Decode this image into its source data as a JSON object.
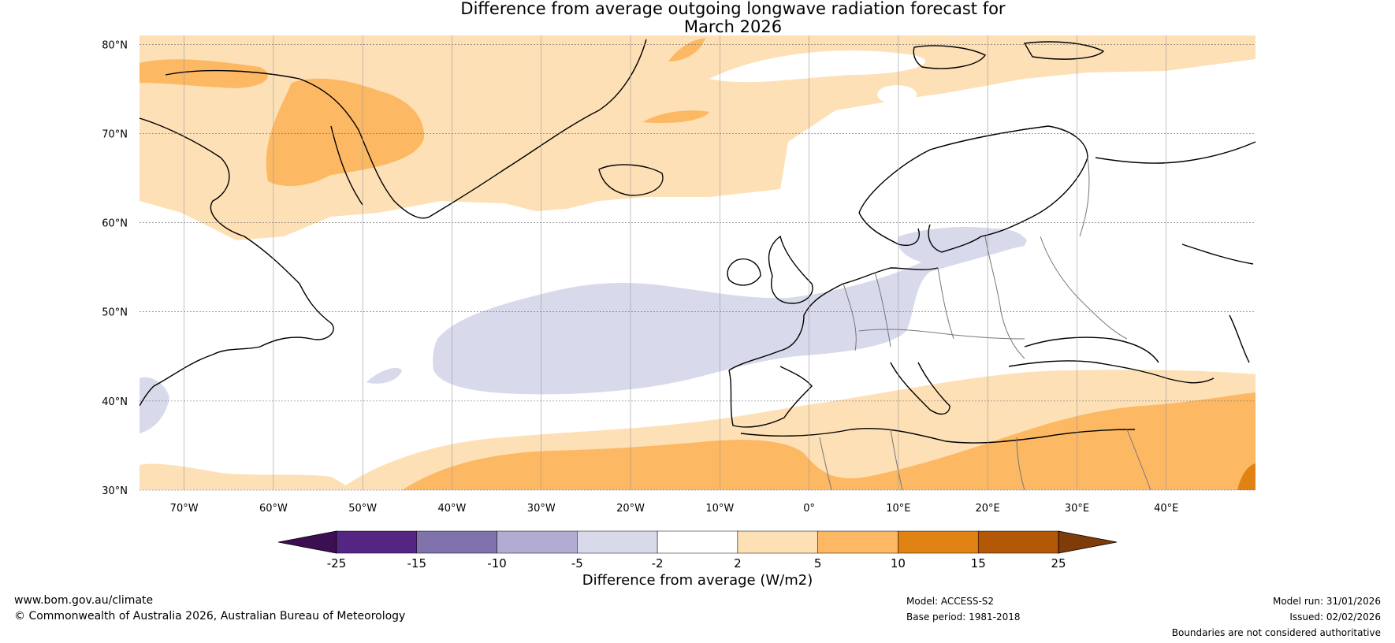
{
  "title": {
    "line1": "Difference from average outgoing longwave radiation forecast for",
    "line2": "March 2026"
  },
  "map": {
    "lat_labels": [
      "80°N",
      "70°N",
      "60°N",
      "50°N",
      "40°N",
      "30°N"
    ],
    "lat_values": [
      80,
      70,
      60,
      50,
      40,
      30
    ],
    "lon_labels": [
      "70°W",
      "60°W",
      "50°W",
      "40°W",
      "30°W",
      "20°W",
      "10°W",
      "0°",
      "10°E",
      "20°E",
      "30°E",
      "40°E"
    ],
    "lon_values": [
      -70,
      -60,
      -50,
      -40,
      -30,
      -20,
      -10,
      0,
      10,
      20,
      30,
      40
    ],
    "lon_range": [
      -75,
      50
    ],
    "lat_range": [
      30,
      81
    ]
  },
  "colorbar": {
    "label": "Difference from average (W/m2)",
    "ticks": [
      "-25",
      "-15",
      "-10",
      "-5",
      "-2",
      "2",
      "5",
      "10",
      "15",
      "25"
    ],
    "colors": [
      "#3b0f52",
      "#542583",
      "#8073ac",
      "#b2abd2",
      "#d8daeb",
      "#ffffff",
      "#fee0b6",
      "#fdb863",
      "#e08214",
      "#b35806",
      "#7f3b08"
    ]
  },
  "footer": {
    "website": "www.bom.gov.au/climate",
    "copyright": "© Commonwealth of Australia 2026, Australian Bureau of Meteorology",
    "model": "Model: ACCESS-S2",
    "base_period": "Base period: 1981-2018",
    "model_run": "Model run: 31/01/2026",
    "issued": "Issued: 02/02/2026",
    "disclaimer": "Boundaries are not considered authoritative"
  }
}
